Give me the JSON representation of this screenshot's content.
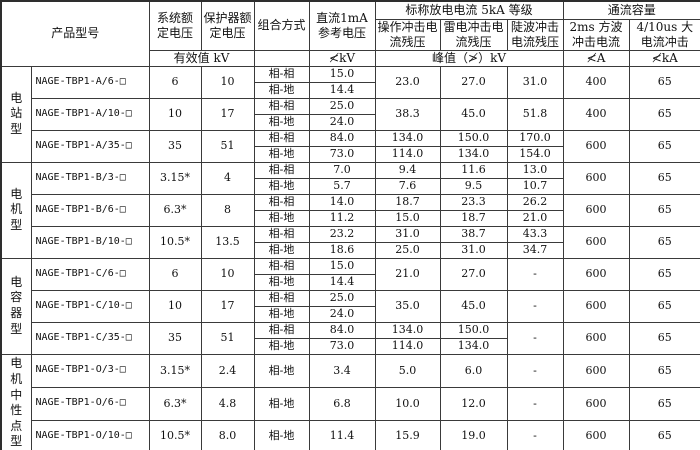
{
  "header": {
    "product": "产品型号",
    "system_voltage": "系统额定电压",
    "protector_voltage": "保护器额定电压",
    "combination": "组合方式",
    "dc_ref": "直流1mA参考电压",
    "discharge_group": "标称放电电流 5kA 等级",
    "switching": "操作冲击电流残压",
    "lightning": "雷电冲击电流残压",
    "steep": "陡波冲击电流残压",
    "capacity_group": "通流容量",
    "sq_wave": "2ms 方波冲击电流",
    "high_current": "4/10us 大电流冲击",
    "effective_kv": "有效值 kV",
    "dc_unit": "≮kV",
    "peak_unit": "峰值（≯）kV",
    "amp_unit": "≮A",
    "kamp_unit": "≮kA"
  },
  "groups": [
    {
      "label": "电站型",
      "models": [
        {
          "model": "NAGE-TBP1-A/6-□",
          "system_kv": "6",
          "protector_kv": "10",
          "subrows": [
            {
              "combo": "相-相",
              "dc": "15.0"
            },
            {
              "combo": "相-地",
              "dc": "14.4"
            }
          ],
          "switching": {
            "merged": "23.0"
          },
          "lightning": {
            "merged": "27.0"
          },
          "steep": {
            "merged": "31.0"
          },
          "cap_2ms": "400",
          "cap_410": "65"
        },
        {
          "model": "NAGE-TBP1-A/10-□",
          "system_kv": "10",
          "protector_kv": "17",
          "subrows": [
            {
              "combo": "相-相",
              "dc": "25.0"
            },
            {
              "combo": "相-地",
              "dc": "24.0"
            }
          ],
          "switching": {
            "merged": "38.3"
          },
          "lightning": {
            "merged": "45.0"
          },
          "steep": {
            "merged": "51.8"
          },
          "cap_2ms": "400",
          "cap_410": "65"
        },
        {
          "model": "NAGE-TBP1-A/35-□",
          "system_kv": "35",
          "protector_kv": "51",
          "subrows": [
            {
              "combo": "相-相",
              "dc": "84.0"
            },
            {
              "combo": "相-地",
              "dc": "73.0"
            }
          ],
          "switching": {
            "rows": [
              "134.0",
              "114.0"
            ]
          },
          "lightning": {
            "rows": [
              "150.0",
              "134.0"
            ]
          },
          "steep": {
            "rows": [
              "170.0",
              "154.0"
            ]
          },
          "cap_2ms": "600",
          "cap_410": "65"
        }
      ]
    },
    {
      "label": "电机型",
      "models": [
        {
          "model": "NAGE-TBP1-B/3-□",
          "system_kv": "3.15*",
          "protector_kv": "4",
          "subrows": [
            {
              "combo": "相-相",
              "dc": "7.0"
            },
            {
              "combo": "相-地",
              "dc": "5.7"
            }
          ],
          "switching": {
            "rows": [
              "9.4",
              "7.6"
            ]
          },
          "lightning": {
            "rows": [
              "11.6",
              "9.5"
            ]
          },
          "steep": {
            "rows": [
              "13.0",
              "10.7"
            ]
          },
          "cap_2ms": "600",
          "cap_410": "65"
        },
        {
          "model": "NAGE-TBP1-B/6-□",
          "system_kv": "6.3*",
          "protector_kv": "8",
          "subrows": [
            {
              "combo": "相-相",
              "dc": "14.0"
            },
            {
              "combo": "相-地",
              "dc": "11.2"
            }
          ],
          "switching": {
            "rows": [
              "18.7",
              "15.0"
            ]
          },
          "lightning": {
            "rows": [
              "23.3",
              "18.7"
            ]
          },
          "steep": {
            "rows": [
              "26.2",
              "21.0"
            ]
          },
          "cap_2ms": "600",
          "cap_410": "65"
        },
        {
          "model": "NAGE-TBP1-B/10-□",
          "system_kv": "10.5*",
          "protector_kv": "13.5",
          "subrows": [
            {
              "combo": "相-相",
              "dc": "23.2"
            },
            {
              "combo": "相-地",
              "dc": "18.6"
            }
          ],
          "switching": {
            "rows": [
              "31.0",
              "25.0"
            ]
          },
          "lightning": {
            "rows": [
              "38.7",
              "31.0"
            ]
          },
          "steep": {
            "rows": [
              "43.3",
              "34.7"
            ]
          },
          "cap_2ms": "600",
          "cap_410": "65"
        }
      ]
    },
    {
      "label": "电容器型",
      "models": [
        {
          "model": "NAGE-TBP1-C/6-□",
          "system_kv": "6",
          "protector_kv": "10",
          "subrows": [
            {
              "combo": "相-相",
              "dc": "15.0"
            },
            {
              "combo": "相-地",
              "dc": "14.4"
            }
          ],
          "switching": {
            "merged": "21.0"
          },
          "lightning": {
            "merged": "27.0"
          },
          "steep": {
            "merged": "-"
          },
          "cap_2ms": "600",
          "cap_410": "65"
        },
        {
          "model": "NAGE-TBP1-C/10-□",
          "system_kv": "10",
          "protector_kv": "17",
          "subrows": [
            {
              "combo": "相-相",
              "dc": "25.0"
            },
            {
              "combo": "相-地",
              "dc": "24.0"
            }
          ],
          "switching": {
            "merged": "35.0"
          },
          "lightning": {
            "merged": "45.0"
          },
          "steep": {
            "merged": "-"
          },
          "cap_2ms": "600",
          "cap_410": "65"
        },
        {
          "model": "NAGE-TBP1-C/35-□",
          "system_kv": "35",
          "protector_kv": "51",
          "subrows": [
            {
              "combo": "相-相",
              "dc": "84.0"
            },
            {
              "combo": "相-地",
              "dc": "73.0"
            }
          ],
          "switching": {
            "rows": [
              "134.0",
              "114.0"
            ]
          },
          "lightning": {
            "rows": [
              "150.0",
              "134.0"
            ]
          },
          "steep": {
            "merged": "-"
          },
          "cap_2ms": "600",
          "cap_410": "65"
        }
      ]
    },
    {
      "label": "电机中性点型",
      "models": [
        {
          "model": "NAGE-TBP1-O/3-□",
          "system_kv": "3.15*",
          "protector_kv": "2.4",
          "subrows": [
            {
              "combo": "相-地",
              "dc": "3.4"
            }
          ],
          "switching": {
            "merged": "5.0"
          },
          "lightning": {
            "merged": "6.0"
          },
          "steep": {
            "merged": "-"
          },
          "cap_2ms": "600",
          "cap_410": "65"
        },
        {
          "model": "NAGE-TBP1-O/6-□",
          "system_kv": "6.3*",
          "protector_kv": "4.8",
          "subrows": [
            {
              "combo": "相-地",
              "dc": "6.8"
            }
          ],
          "switching": {
            "merged": "10.0"
          },
          "lightning": {
            "merged": "12.0"
          },
          "steep": {
            "merged": "-"
          },
          "cap_2ms": "600",
          "cap_410": "65"
        },
        {
          "model": "NAGE-TBP1-O/10-□",
          "system_kv": "10.5*",
          "protector_kv": "8.0",
          "subrows": [
            {
              "combo": "相-地",
              "dc": "11.4"
            }
          ],
          "switching": {
            "merged": "15.9"
          },
          "lightning": {
            "merged": "19.0"
          },
          "steep": {
            "merged": "-"
          },
          "cap_2ms": "600",
          "cap_410": "65"
        }
      ]
    }
  ]
}
